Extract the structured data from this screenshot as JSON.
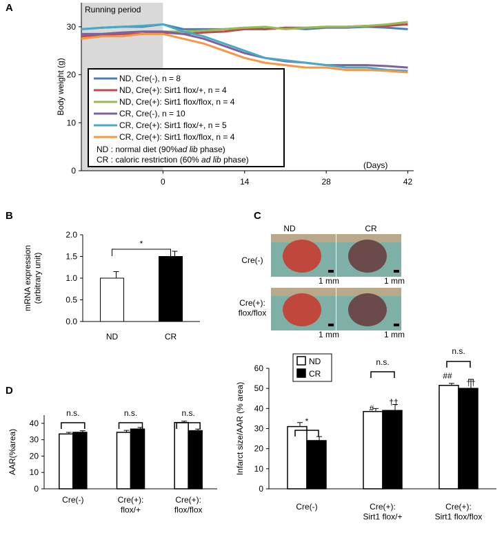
{
  "chart_data": [
    {
      "type": "line",
      "label": "A",
      "ylabel": "Body weight (g)",
      "xlabel": "(Days)",
      "shade": {
        "label": "Running period",
        "range": [
          -14,
          0
        ],
        "color": "#d9d9d9"
      },
      "x": [
        -14,
        -10.5,
        -7,
        -3.5,
        0,
        3.5,
        7,
        10.5,
        14,
        17.5,
        21,
        24.5,
        28,
        31.5,
        35,
        38.5,
        42
      ],
      "xlim": [
        -14,
        43
      ],
      "xticks": [
        0,
        14,
        28,
        42
      ],
      "ylim": [
        0,
        35
      ],
      "yticks": [
        0,
        10,
        20,
        30
      ],
      "series": [
        {
          "name": "ND, Cre(-), n = 8",
          "color": "#4a7ebb",
          "values": [
            29.5,
            29.8,
            30,
            30,
            30.5,
            29.5,
            29.5,
            29.5,
            29.8,
            29.5,
            29.8,
            29.5,
            29.8,
            29.8,
            30,
            29.8,
            29.5
          ]
        },
        {
          "name": "ND, Cre(+): Sirt1 flox/+, n = 4",
          "color": "#be4b48",
          "values": [
            28,
            28.3,
            28.5,
            28.5,
            28.8,
            28.5,
            28.8,
            29,
            29.5,
            29.5,
            29.8,
            29.8,
            30,
            30,
            30.2,
            30.2,
            30.5
          ]
        },
        {
          "name": "ND, Cre(+): Sirt1 flox/flox, n = 4",
          "color": "#98b954",
          "values": [
            28.5,
            28.5,
            28.8,
            29,
            29,
            29,
            29.2,
            29.5,
            29.8,
            30,
            29.5,
            29.8,
            30,
            30,
            30.2,
            30.5,
            31
          ]
        },
        {
          "name": "CR, Cre(-), n = 10",
          "color": "#7d60a0",
          "values": [
            28.5,
            28.5,
            28.8,
            29,
            29,
            28.5,
            27.5,
            26,
            24.5,
            23.5,
            22.8,
            22.5,
            22,
            22,
            22,
            21.8,
            21.5
          ]
        },
        {
          "name": "CR, Cre(+): Sirt1 flox/+, n = 5",
          "color": "#46aac5",
          "values": [
            29.5,
            29.8,
            30,
            30.2,
            30.5,
            29,
            28,
            26.5,
            25,
            23.5,
            23,
            22.5,
            22,
            21.5,
            21.5,
            21,
            20.8
          ]
        },
        {
          "name": "CR, Cre(+): Sirt1 flox/flox, n = 4",
          "color": "#f79646",
          "values": [
            27.5,
            28,
            28,
            28.5,
            28.5,
            27.5,
            26.5,
            25,
            23.5,
            22.5,
            22,
            21.5,
            21.5,
            21,
            21,
            20.8,
            20.5
          ]
        }
      ],
      "notes": [
        [
          "ND : normal diet  (90%",
          "ad lib",
          " phase)"
        ],
        [
          "CR : caloric restriction (60% ",
          "ad lib",
          " phase)"
        ]
      ]
    },
    {
      "type": "bar",
      "label": "B",
      "ylabel": "mRNA expression\n(arbitrary unit)",
      "categories": [
        "ND",
        "CR"
      ],
      "colors": [
        "#ffffff",
        "#000000"
      ],
      "values": [
        1.0,
        1.5
      ],
      "errors": [
        0.15,
        0.12
      ],
      "ylim": [
        0,
        2
      ],
      "yticks": [
        {
          "value": 0,
          "label": "0.0"
        },
        0.5,
        {
          "value": 1,
          "label": "1.0"
        },
        1.5,
        {
          "value": 2,
          "label": "2.0"
        }
      ],
      "annotations": [
        "*"
      ]
    },
    {
      "type": "groupbar",
      "label": "D",
      "ylabel": "AAR(%area)",
      "categories": [
        "Cre(-)",
        "Cre(+):\nflox/+",
        "Cre(+):\nflox/flox"
      ],
      "series": [
        {
          "name": "ND",
          "color": "#ffffff",
          "values": [
            33.5,
            34.5,
            40.5
          ],
          "errors": [
            1,
            1.2,
            0.8
          ]
        },
        {
          "name": "CR",
          "color": "#000000",
          "values": [
            34.5,
            36.5,
            35.5
          ],
          "errors": [
            1,
            1,
            1
          ]
        }
      ],
      "ylim": [
        0,
        45
      ],
      "yticks": [
        0,
        10,
        20,
        30,
        40
      ],
      "annotations": [
        "n.s.",
        "n.s.",
        "n.s."
      ]
    },
    {
      "type": "groupbar",
      "label": "",
      "ylabel": "Infarct size/AAR  (% area)",
      "legend": true,
      "categories": [
        "Cre(-)",
        "Cre(+):\nSirt1 flox/+",
        "Cre(+):\nSirt1 flox/flox"
      ],
      "series": [
        {
          "name": "ND",
          "color": "#ffffff",
          "values": [
            31,
            38.5,
            51.5
          ],
          "errors": [
            2,
            1.5,
            1
          ]
        },
        {
          "name": "CR",
          "color": "#000000",
          "values": [
            24,
            39,
            50
          ],
          "errors": [
            2,
            3,
            4.5
          ]
        }
      ],
      "ylim": [
        0,
        60
      ],
      "yticks": [
        0,
        10,
        20,
        30,
        40,
        50,
        60
      ],
      "annotations": [
        "*",
        "n.s.",
        "#",
        "††",
        "n.s.",
        "##",
        "††"
      ]
    }
  ],
  "panel_c": {
    "label": "C",
    "columns": [
      "ND",
      "CR"
    ],
    "rows": [
      "Cre(-)",
      "Cre(+):\nflox/flox"
    ],
    "scale_label": "1 mm"
  }
}
